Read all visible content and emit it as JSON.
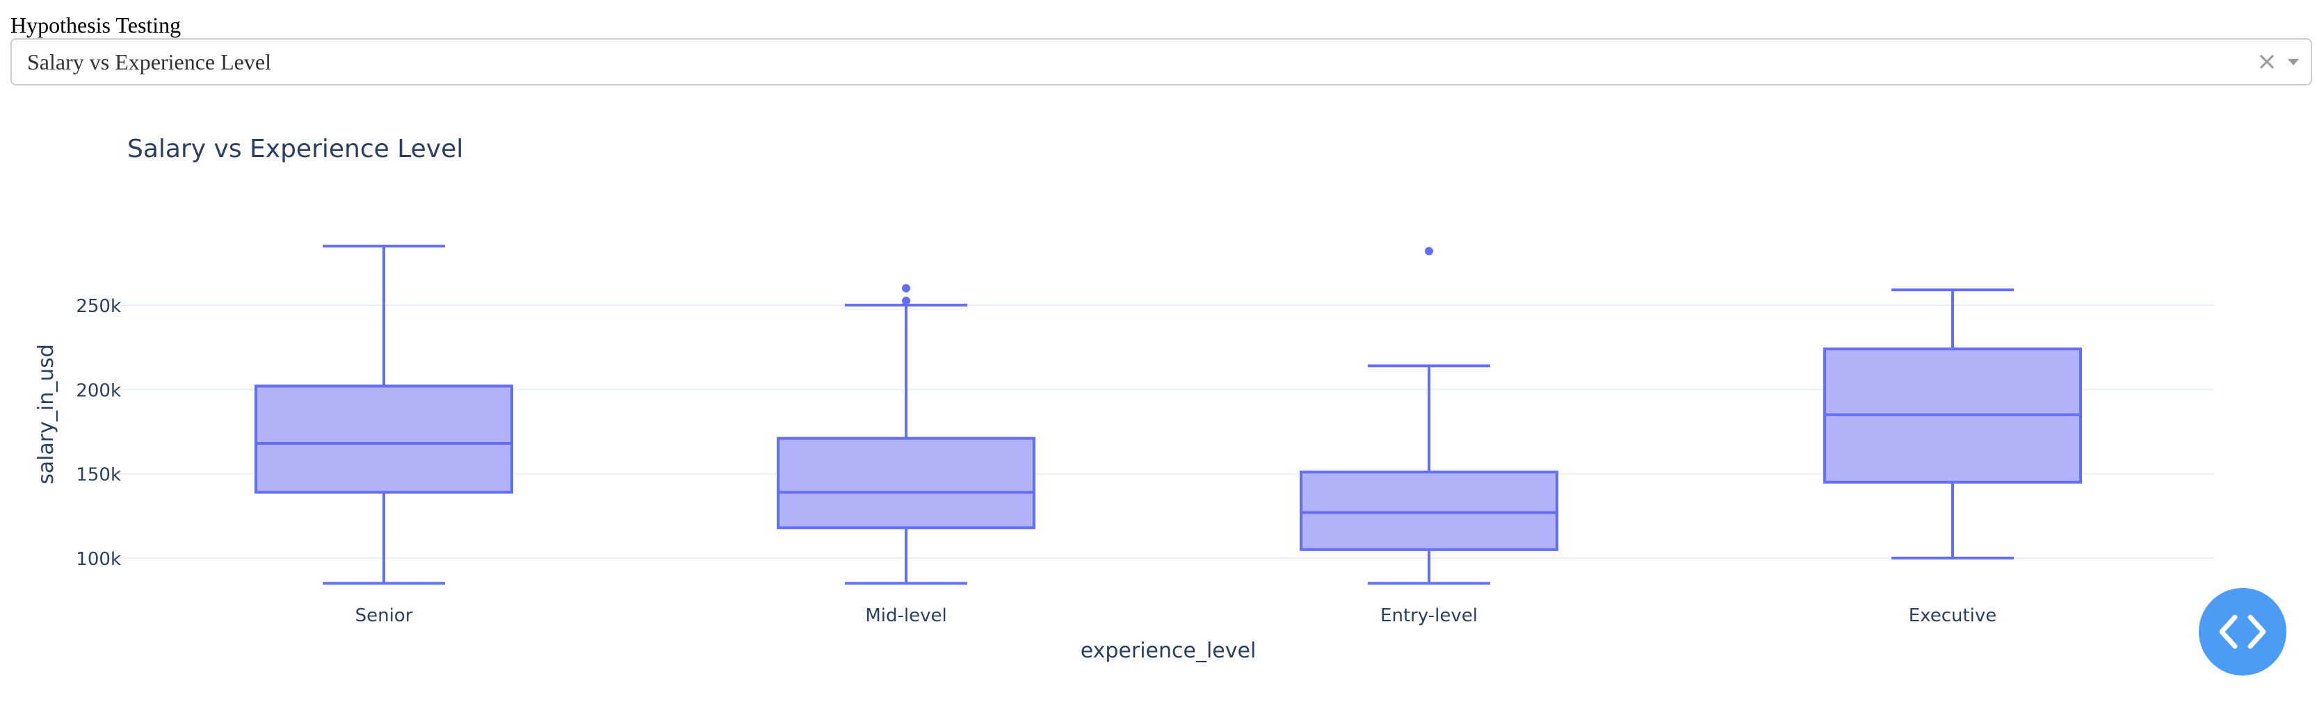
{
  "section_label": "Hypothesis Testing",
  "dropdown": {
    "selected": "Salary vs Experience Level",
    "clear_icon": "close-icon",
    "toggle_icon": "chevron-down-icon"
  },
  "chart_data": {
    "type": "box",
    "title": "Salary vs Experience Level",
    "xlabel": "experience_level",
    "ylabel": "salary_in_usd",
    "categories": [
      "Senior",
      "Mid-level",
      "Entry-level",
      "Executive"
    ],
    "boxes": [
      {
        "category": "Senior",
        "lower_whisker": 85000,
        "q1": 139000,
        "median": 168000,
        "q3": 202000,
        "upper_whisker": 285000,
        "outliers": []
      },
      {
        "category": "Mid-level",
        "lower_whisker": 85000,
        "q1": 118000,
        "median": 139000,
        "q3": 171000,
        "upper_whisker": 250000,
        "outliers": [
          252500,
          260000
        ]
      },
      {
        "category": "Entry-level",
        "lower_whisker": 85000,
        "q1": 105000,
        "median": 127000,
        "q3": 151000,
        "upper_whisker": 214000,
        "outliers": [
          282000
        ]
      },
      {
        "category": "Executive",
        "lower_whisker": 100000,
        "q1": 145000,
        "median": 185000,
        "q3": 224000,
        "upper_whisker": 259000,
        "outliers": []
      }
    ],
    "y_ticks": [
      100000,
      150000,
      200000,
      250000
    ],
    "y_tick_labels": [
      "100k",
      "150k",
      "200k",
      "250k"
    ],
    "ylim": [
      85000,
      300000
    ],
    "grid": true,
    "colors": {
      "box_fill": "#b1b2f7",
      "box_line": "#636efa",
      "grid": "#ebf0f8",
      "text": "#2a3f5f"
    }
  },
  "fab": {
    "icon": "code-icon"
  }
}
